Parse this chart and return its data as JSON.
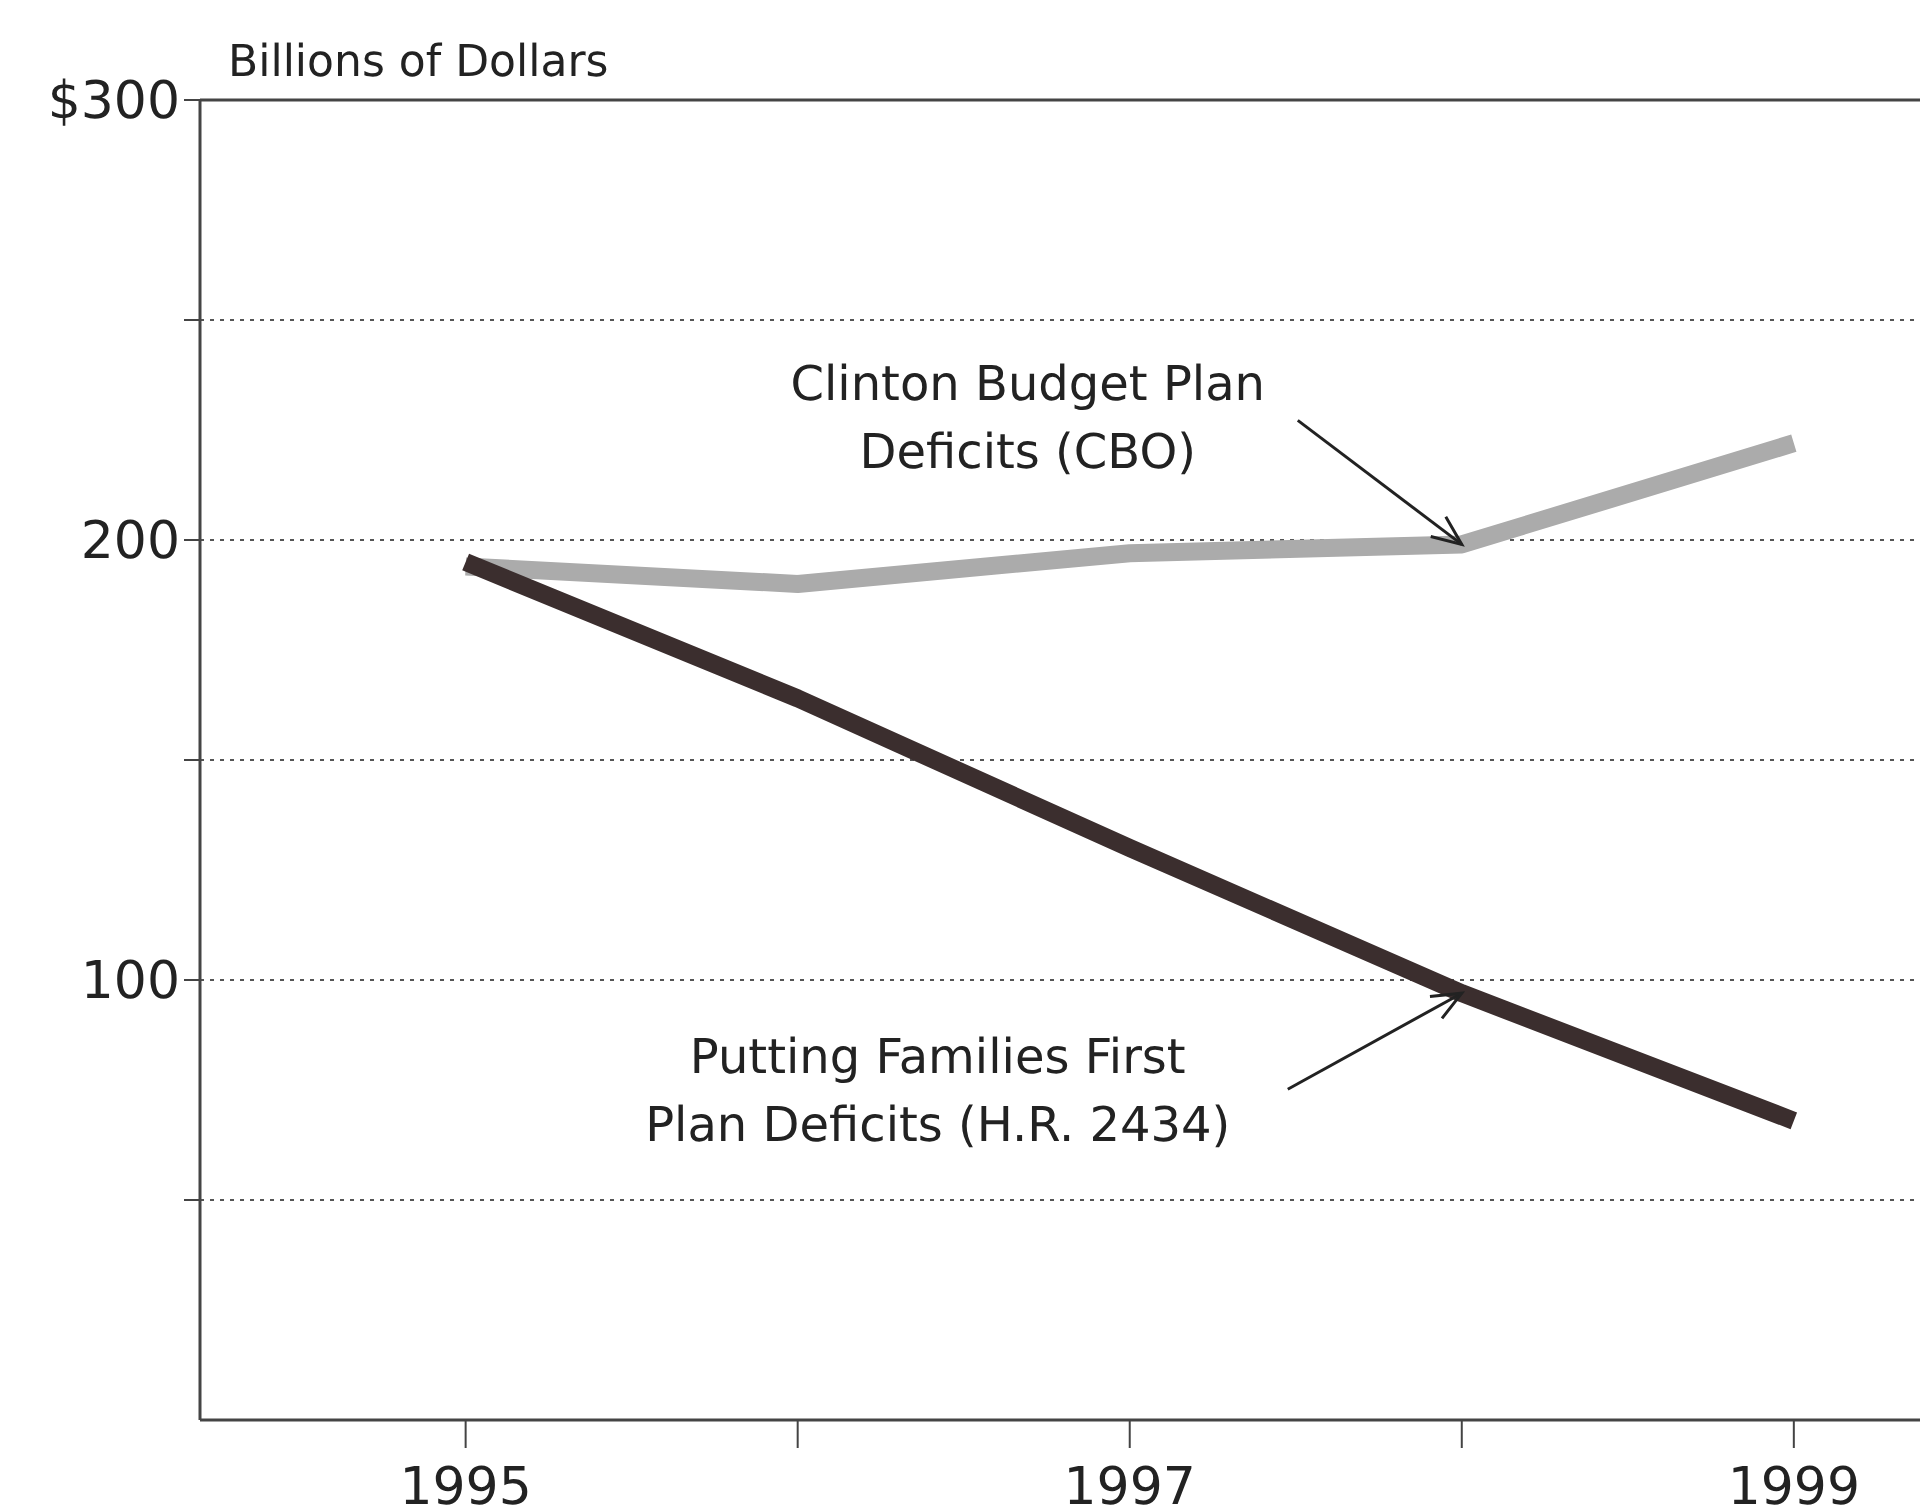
{
  "chart_data": {
    "type": "line",
    "ylabel": "Billions of Dollars",
    "x": [
      1995,
      1996,
      1997,
      1998,
      1999
    ],
    "xlim": [
      1994.2,
      1999.38
    ],
    "xticks": [
      1995,
      {
        "value": 1996,
        "label": null
      },
      1997,
      {
        "value": 1998,
        "label": null
      },
      1999
    ],
    "ylim": [
      0,
      300
    ],
    "yticks": [
      {
        "value": 50,
        "label": null
      },
      100,
      {
        "value": 150,
        "label": null
      },
      200,
      {
        "value": 250,
        "label": null
      },
      {
        "value": 300,
        "label": "$300"
      }
    ],
    "grid": "y",
    "marker": "none",
    "line_style": "solid",
    "series": [
      {
        "color": "#ababab",
        "values": [
          194,
          190,
          197,
          199,
          222
        ]
      },
      {
        "color": "#3b2e2e",
        "values": [
          195,
          164,
          130,
          97,
          68
        ]
      }
    ],
    "annotations": [
      {
        "text": "Clinton Budget Plan\nDeficits (CBO)",
        "x": 1998,
        "y": 199
      },
      {
        "text": "Putting Families First\nPlan Deficits (H.R. 2434)",
        "x": 1998,
        "y": 97
      }
    ]
  }
}
